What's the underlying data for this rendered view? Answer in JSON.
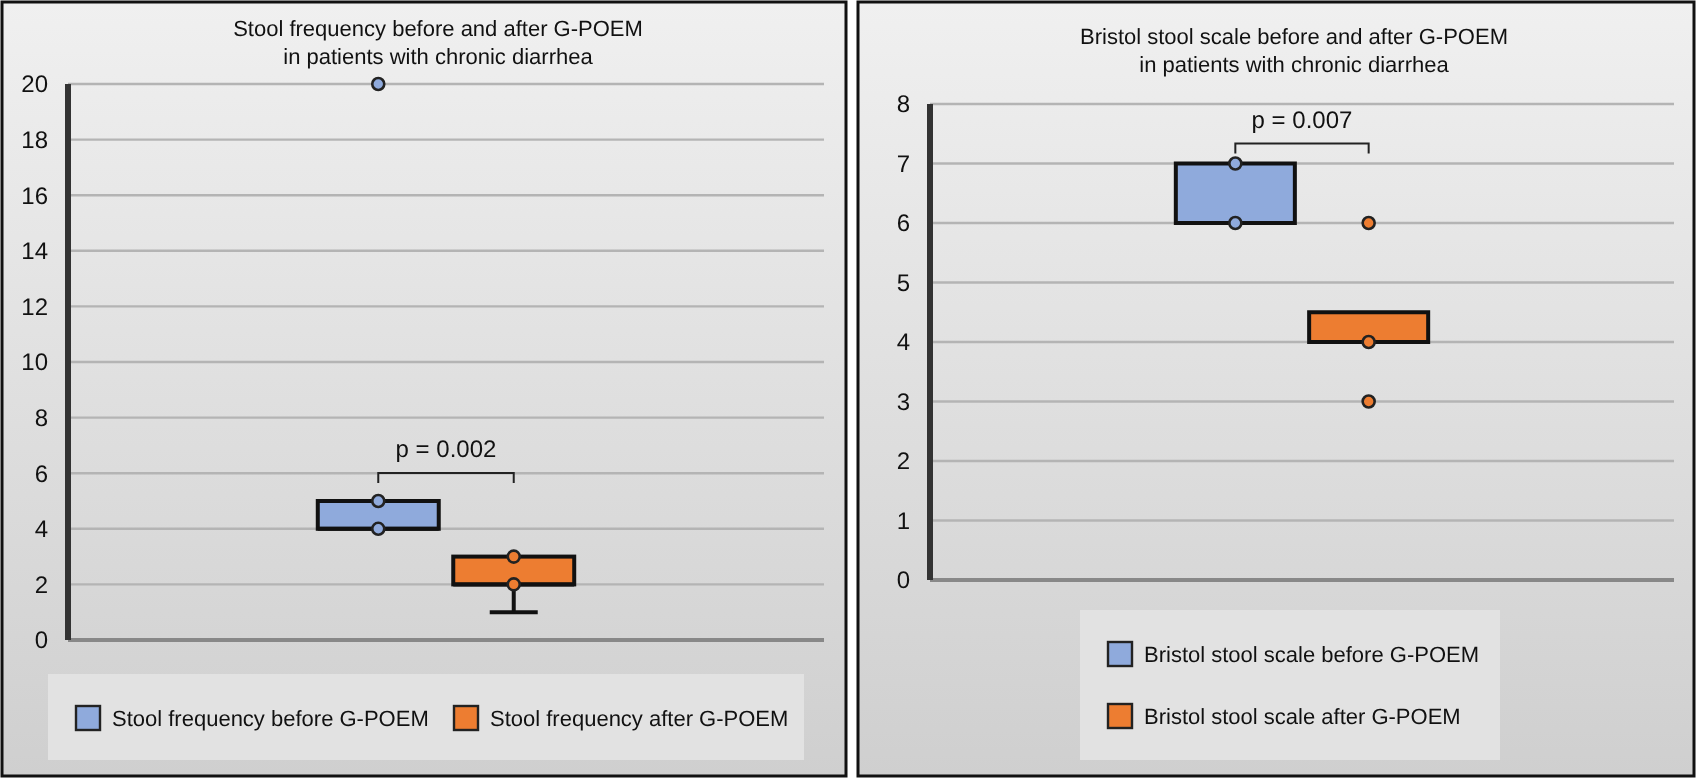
{
  "chart_data": [
    {
      "type": "box",
      "title": "Stool frequency before and after G-POEM\nin patients with chronic diarrhea",
      "categories": [
        null
      ],
      "ylim": [
        0,
        20
      ],
      "yticks": [
        0,
        2,
        4,
        6,
        8,
        10,
        12,
        14,
        16,
        18,
        20
      ],
      "grid": "y",
      "legend": "bottom",
      "annotations": [
        "p = 0.002"
      ],
      "series": [
        {
          "name": "Stool frequency before G-POEM",
          "color": "#8faadc",
          "boxes": [
            {
              "low": 4,
              "q1": 4,
              "median": 4,
              "q3": 5,
              "high": 5,
              "mean": 5,
              "outliers": [
                20
              ]
            }
          ]
        },
        {
          "name": "Stool frequency after G-POEM",
          "color": "#ed7d31",
          "boxes": [
            {
              "low": 1,
              "q1": 2,
              "median": 2,
              "q3": 3,
              "high": 3,
              "mean": 3
            }
          ]
        }
      ]
    },
    {
      "type": "box",
      "title": "Bristol stool scale before and after G-POEM\nin patients with chronic diarrhea",
      "categories": [
        null
      ],
      "ylim": [
        0,
        8
      ],
      "yticks": [
        0,
        1,
        2,
        3,
        4,
        5,
        6,
        7,
        8
      ],
      "grid": "y",
      "legend": "bottom",
      "annotations": [
        "p = 0.007"
      ],
      "series": [
        {
          "name": "Bristol stool scale before G-POEM",
          "color": "#8faadc",
          "boxes": [
            {
              "low": 6,
              "q1": 6,
              "median": 6,
              "q3": 7,
              "high": 7,
              "mean": 7
            }
          ]
        },
        {
          "name": "Bristol stool scale after G-POEM",
          "color": "#ed7d31",
          "boxes": [
            {
              "low": 4,
              "q1": 4,
              "median": 4,
              "q3": 4.5,
              "high": 4.5,
              "outliers": [
                6,
                3
              ]
            }
          ]
        }
      ]
    }
  ]
}
